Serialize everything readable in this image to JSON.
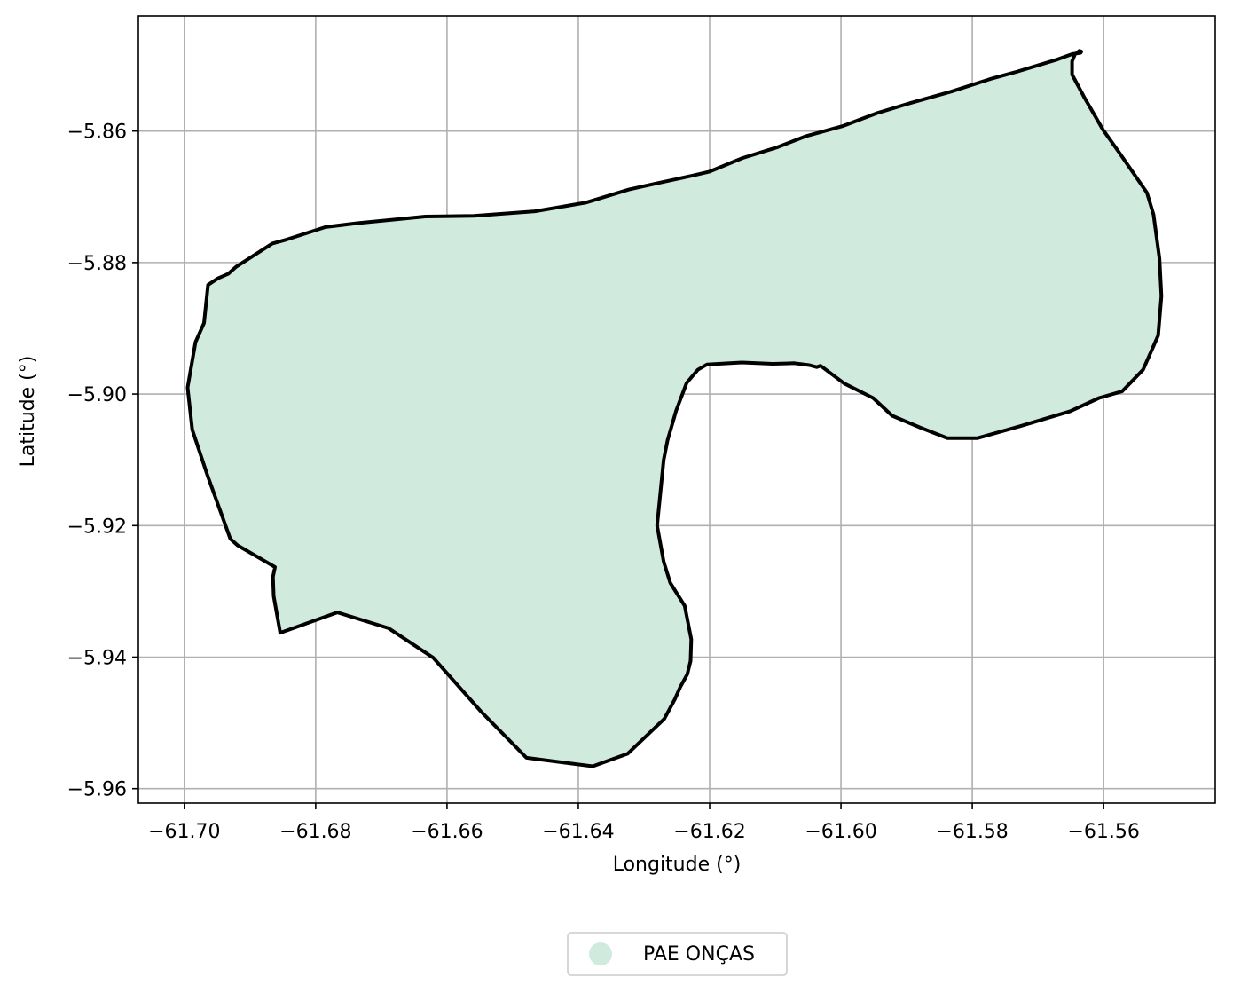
{
  "chart_data": {
    "type": "map",
    "xlabel": "Longitude (°)",
    "ylabel": "Latitude (°)",
    "xlim": [
      -61.707,
      -61.543
    ],
    "ylim": [
      -5.9622,
      -5.8425
    ],
    "grid": true,
    "x_ticks": [
      -61.7,
      -61.68,
      -61.66,
      -61.64,
      -61.62,
      -61.6,
      -61.58,
      -61.56
    ],
    "x_tick_labels": [
      "−61.70",
      "−61.68",
      "−61.66",
      "−61.64",
      "−61.62",
      "−61.60",
      "−61.58",
      "−61.56"
    ],
    "y_ticks": [
      -5.86,
      -5.88,
      -5.9,
      -5.92,
      -5.94,
      -5.96
    ],
    "y_tick_labels": [
      "−5.86",
      "−5.88",
      "−5.90",
      "−5.92",
      "−5.94",
      "−5.96"
    ],
    "legend_position": "bottom-center",
    "features": [
      {
        "name": "PAE ONÇAS",
        "fill_color": "#d0ebde",
        "edge_color": "#000000",
        "coordinates": [
          [
            -61.5637,
            -5.8478
          ],
          [
            -61.5644,
            -5.8484
          ],
          [
            -61.5648,
            -5.8494
          ],
          [
            -61.5648,
            -5.8514
          ],
          [
            -61.563,
            -5.8548
          ],
          [
            -61.5601,
            -5.8598
          ],
          [
            -61.5576,
            -5.8633
          ],
          [
            -61.5534,
            -5.8694
          ],
          [
            -61.5524,
            -5.8727
          ],
          [
            -61.5515,
            -5.8794
          ],
          [
            -61.5512,
            -5.8851
          ],
          [
            -61.5517,
            -5.8911
          ],
          [
            -61.554,
            -5.8963
          ],
          [
            -61.5572,
            -5.8996
          ],
          [
            -61.5607,
            -5.9006
          ],
          [
            -61.5651,
            -5.9026
          ],
          [
            -61.5728,
            -5.9049
          ],
          [
            -61.5792,
            -5.9067
          ],
          [
            -61.5838,
            -5.9067
          ],
          [
            -61.5879,
            -5.9051
          ],
          [
            -61.5922,
            -5.9033
          ],
          [
            -61.5951,
            -5.9006
          ],
          [
            -61.5995,
            -5.8984
          ],
          [
            -61.6031,
            -5.8957
          ],
          [
            -61.6037,
            -5.8959
          ],
          [
            -61.6048,
            -5.8956
          ],
          [
            -61.6071,
            -5.8953
          ],
          [
            -61.6104,
            -5.8954
          ],
          [
            -61.6151,
            -5.8952
          ],
          [
            -61.6204,
            -5.8955
          ],
          [
            -61.6218,
            -5.8963
          ],
          [
            -61.6235,
            -5.8983
          ],
          [
            -61.6251,
            -5.9025
          ],
          [
            -61.6264,
            -5.907
          ],
          [
            -61.627,
            -5.91
          ],
          [
            -61.628,
            -5.92
          ],
          [
            -61.627,
            -5.9255
          ],
          [
            -61.626,
            -5.9287
          ],
          [
            -61.6238,
            -5.9322
          ],
          [
            -61.6228,
            -5.9373
          ],
          [
            -61.6229,
            -5.9406
          ],
          [
            -61.6234,
            -5.9426
          ],
          [
            -61.6245,
            -5.9446
          ],
          [
            -61.6253,
            -5.9464
          ],
          [
            -61.6269,
            -5.9494
          ],
          [
            -61.6325,
            -5.9547
          ],
          [
            -61.6364,
            -5.9561
          ],
          [
            -61.6378,
            -5.9566
          ],
          [
            -61.6479,
            -5.9553
          ],
          [
            -61.6548,
            -5.9483
          ],
          [
            -61.6621,
            -5.9401
          ],
          [
            -61.6689,
            -5.9356
          ],
          [
            -61.6767,
            -5.9332
          ],
          [
            -61.6854,
            -5.9363
          ],
          [
            -61.6864,
            -5.9307
          ],
          [
            -61.6865,
            -5.9278
          ],
          [
            -61.6862,
            -5.9263
          ],
          [
            -61.6919,
            -5.923
          ],
          [
            -61.693,
            -5.922
          ],
          [
            -61.6965,
            -5.9123
          ],
          [
            -61.6988,
            -5.9054
          ],
          [
            -61.6995,
            -5.899
          ],
          [
            -61.6983,
            -5.8921
          ],
          [
            -61.697,
            -5.8892
          ],
          [
            -61.6964,
            -5.8834
          ],
          [
            -61.6949,
            -5.8824
          ],
          [
            -61.6933,
            -5.8817
          ],
          [
            -61.6922,
            -5.8807
          ],
          [
            -61.6866,
            -5.8771
          ],
          [
            -61.6844,
            -5.8765
          ],
          [
            -61.6785,
            -5.8746
          ],
          [
            -61.6735,
            -5.874
          ],
          [
            -61.6695,
            -5.8736
          ],
          [
            -61.6633,
            -5.873
          ],
          [
            -61.6559,
            -5.8729
          ],
          [
            -61.6466,
            -5.8722
          ],
          [
            -61.6389,
            -5.8709
          ],
          [
            -61.6323,
            -5.8689
          ],
          [
            -61.6278,
            -5.8679
          ],
          [
            -61.6227,
            -5.8668
          ],
          [
            -61.6201,
            -5.8662
          ],
          [
            -61.615,
            -5.8641
          ],
          [
            -61.6098,
            -5.8625
          ],
          [
            -61.6054,
            -5.8608
          ],
          [
            -61.5996,
            -5.8592
          ],
          [
            -61.5946,
            -5.8573
          ],
          [
            -61.5893,
            -5.8557
          ],
          [
            -61.5832,
            -5.854
          ],
          [
            -61.5773,
            -5.8521
          ],
          [
            -61.5733,
            -5.851
          ],
          [
            -61.5693,
            -5.8498
          ],
          [
            -61.567,
            -5.8491
          ],
          [
            -61.5648,
            -5.8483
          ],
          [
            -61.5635,
            -5.8481
          ],
          [
            -61.5634,
            -5.8479
          ],
          [
            -61.5637,
            -5.8478
          ]
        ]
      }
    ]
  }
}
